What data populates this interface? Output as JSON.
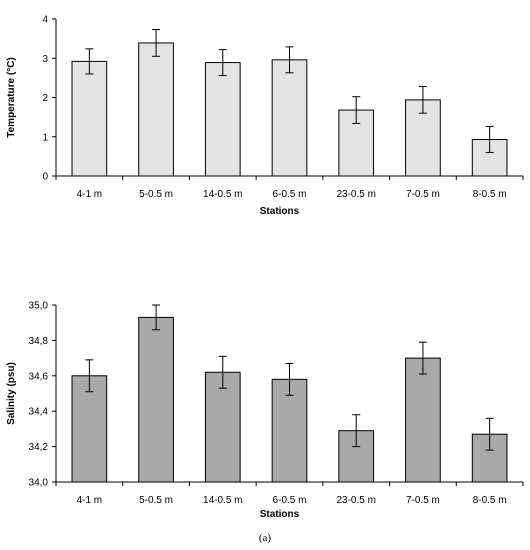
{
  "caption": "(a)",
  "chart_data": [
    {
      "type": "bar",
      "categories": [
        "4-1 m",
        "5-0.5 m",
        "14-0.5 m",
        "6-0.5 m",
        "23-0.5 m",
        "7-0.5 m",
        "8-0.5 m"
      ],
      "values": [
        2.92,
        3.39,
        2.89,
        2.96,
        1.68,
        1.94,
        0.93
      ],
      "errors": [
        0.32,
        0.34,
        0.33,
        0.33,
        0.34,
        0.34,
        0.33
      ],
      "xlabel": "Stations",
      "ylabel": "Temperature (°C)",
      "ylim": [
        0,
        4
      ],
      "yticks": [
        "0",
        "1",
        "2",
        "3",
        "4"
      ],
      "bar_color": "#e3e3e3",
      "grid": false
    },
    {
      "type": "bar",
      "categories": [
        "4-1 m",
        "5-0.5 m",
        "14-0.5 m",
        "6-0.5 m",
        "23-0.5 m",
        "7-0.5 m",
        "8-0.5 m"
      ],
      "values": [
        34.6,
        34.93,
        34.62,
        34.58,
        34.29,
        34.7,
        34.27
      ],
      "errors": [
        0.09,
        0.07,
        0.09,
        0.09,
        0.09,
        0.09,
        0.09
      ],
      "xlabel": "Stations",
      "ylabel": "Salinity (psu)",
      "ylim": [
        34.0,
        35.0
      ],
      "yticks": [
        "34,0",
        "34,2",
        "34,4",
        "34,6",
        "34,8",
        "35,0"
      ],
      "bar_color": "#a9a9a9",
      "grid": false
    }
  ]
}
